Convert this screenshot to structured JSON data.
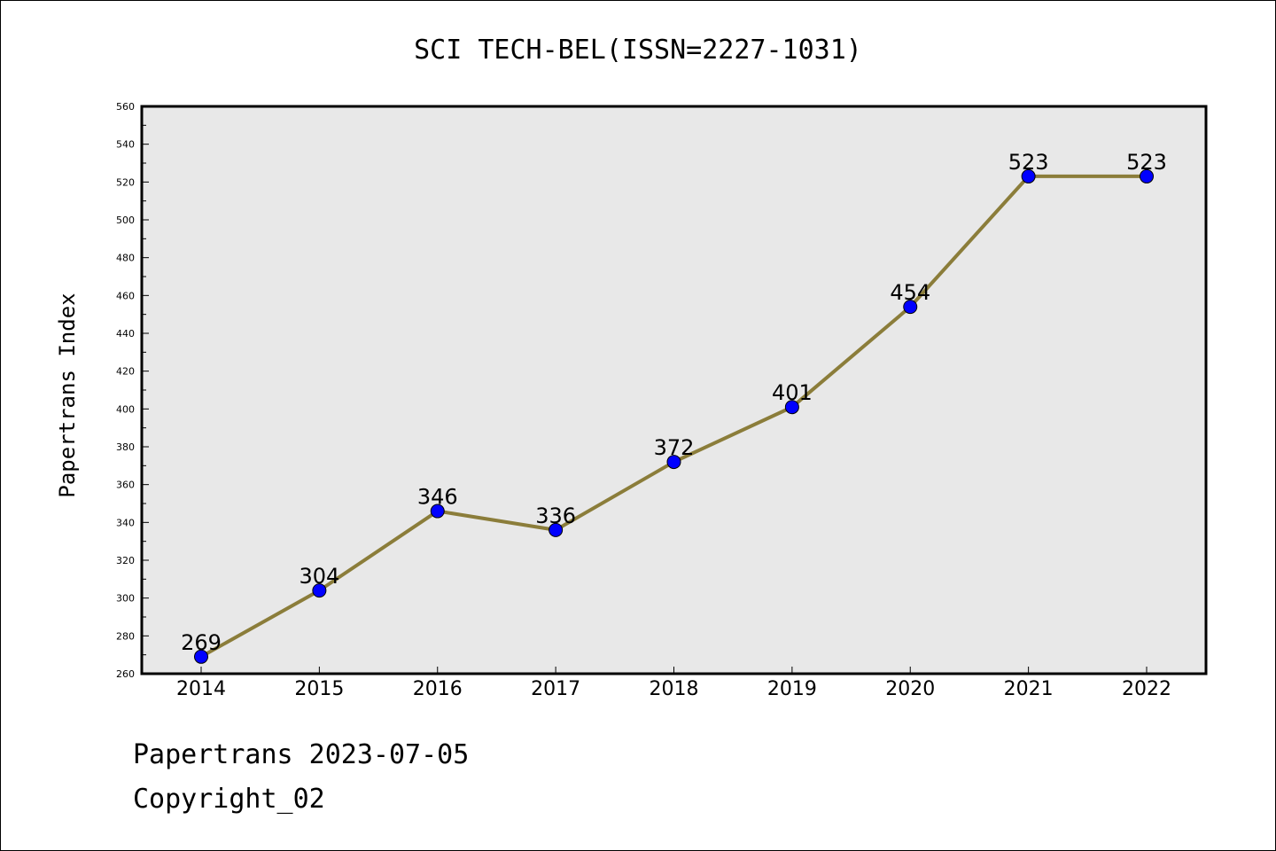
{
  "chart_data": {
    "type": "line",
    "title": "SCI TECH-BEL(ISSN=2227-1031)",
    "xlabel": "",
    "ylabel": "Papertrans Index",
    "categories": [
      "2014",
      "2015",
      "2016",
      "2017",
      "2018",
      "2019",
      "2020",
      "2021",
      "2022"
    ],
    "series": [
      {
        "values": [
          269,
          304,
          346,
          336,
          372,
          401,
          454,
          523,
          523
        ]
      }
    ],
    "data_labels": [
      "269",
      "304",
      "346",
      "336",
      "372",
      "401",
      "454",
      "523",
      "523"
    ],
    "ylim": [
      260,
      560
    ],
    "yticks": [
      260,
      280,
      300,
      320,
      340,
      360,
      380,
      400,
      420,
      440,
      460,
      480,
      500,
      520,
      540,
      560
    ],
    "ytick_labels": [
      "260",
      "280",
      "300",
      "320",
      "340",
      "360",
      "380",
      "400",
      "420",
      "440",
      "460",
      "480",
      "500",
      "520",
      "540",
      "560"
    ],
    "grid": false,
    "legend": "none",
    "colors": {
      "line": "#8b7d3a",
      "marker": "#0000ff",
      "plot_background": "#e8e8e8"
    }
  },
  "footer": {
    "line1": "Papertrans 2023-07-05",
    "line2": "Copyright_02"
  }
}
